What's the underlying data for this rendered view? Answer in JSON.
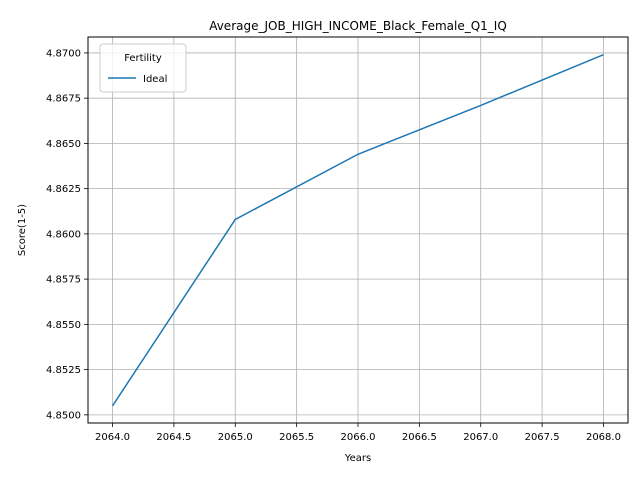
{
  "chart_data": {
    "type": "line",
    "title": "Average_JOB_HIGH_INCOME_Black_Female_Q1_IQ",
    "xlabel": "Years",
    "ylabel": "Score(1-5)",
    "x": [
      2064,
      2065,
      2066,
      2067,
      2068
    ],
    "xlim": [
      2063.8,
      2068.2
    ],
    "ylim": [
      4.84955,
      4.87088
    ],
    "xticks": [
      2064.0,
      2064.5,
      2065.0,
      2065.5,
      2066.0,
      2066.5,
      2067.0,
      2067.5,
      2068.0
    ],
    "xtick_labels": [
      "2064.0",
      "2064.5",
      "2065.0",
      "2065.5",
      "2066.0",
      "2066.5",
      "2067.0",
      "2067.5",
      "2068.0"
    ],
    "yticks": [
      4.85,
      4.8525,
      4.855,
      4.8575,
      4.86,
      4.8625,
      4.865,
      4.8675,
      4.87
    ],
    "ytick_labels": [
      "4.8500",
      "4.8525",
      "4.8550",
      "4.8575",
      "4.8600",
      "4.8625",
      "4.8650",
      "4.8675",
      "4.8700"
    ],
    "grid": true,
    "legend": {
      "title": "Fertility",
      "placement": "top-left"
    },
    "series": [
      {
        "name": "Ideal",
        "color": "#1f77b4",
        "values": [
          4.8505,
          4.8608,
          4.8644,
          4.8671,
          4.8699
        ]
      }
    ]
  }
}
